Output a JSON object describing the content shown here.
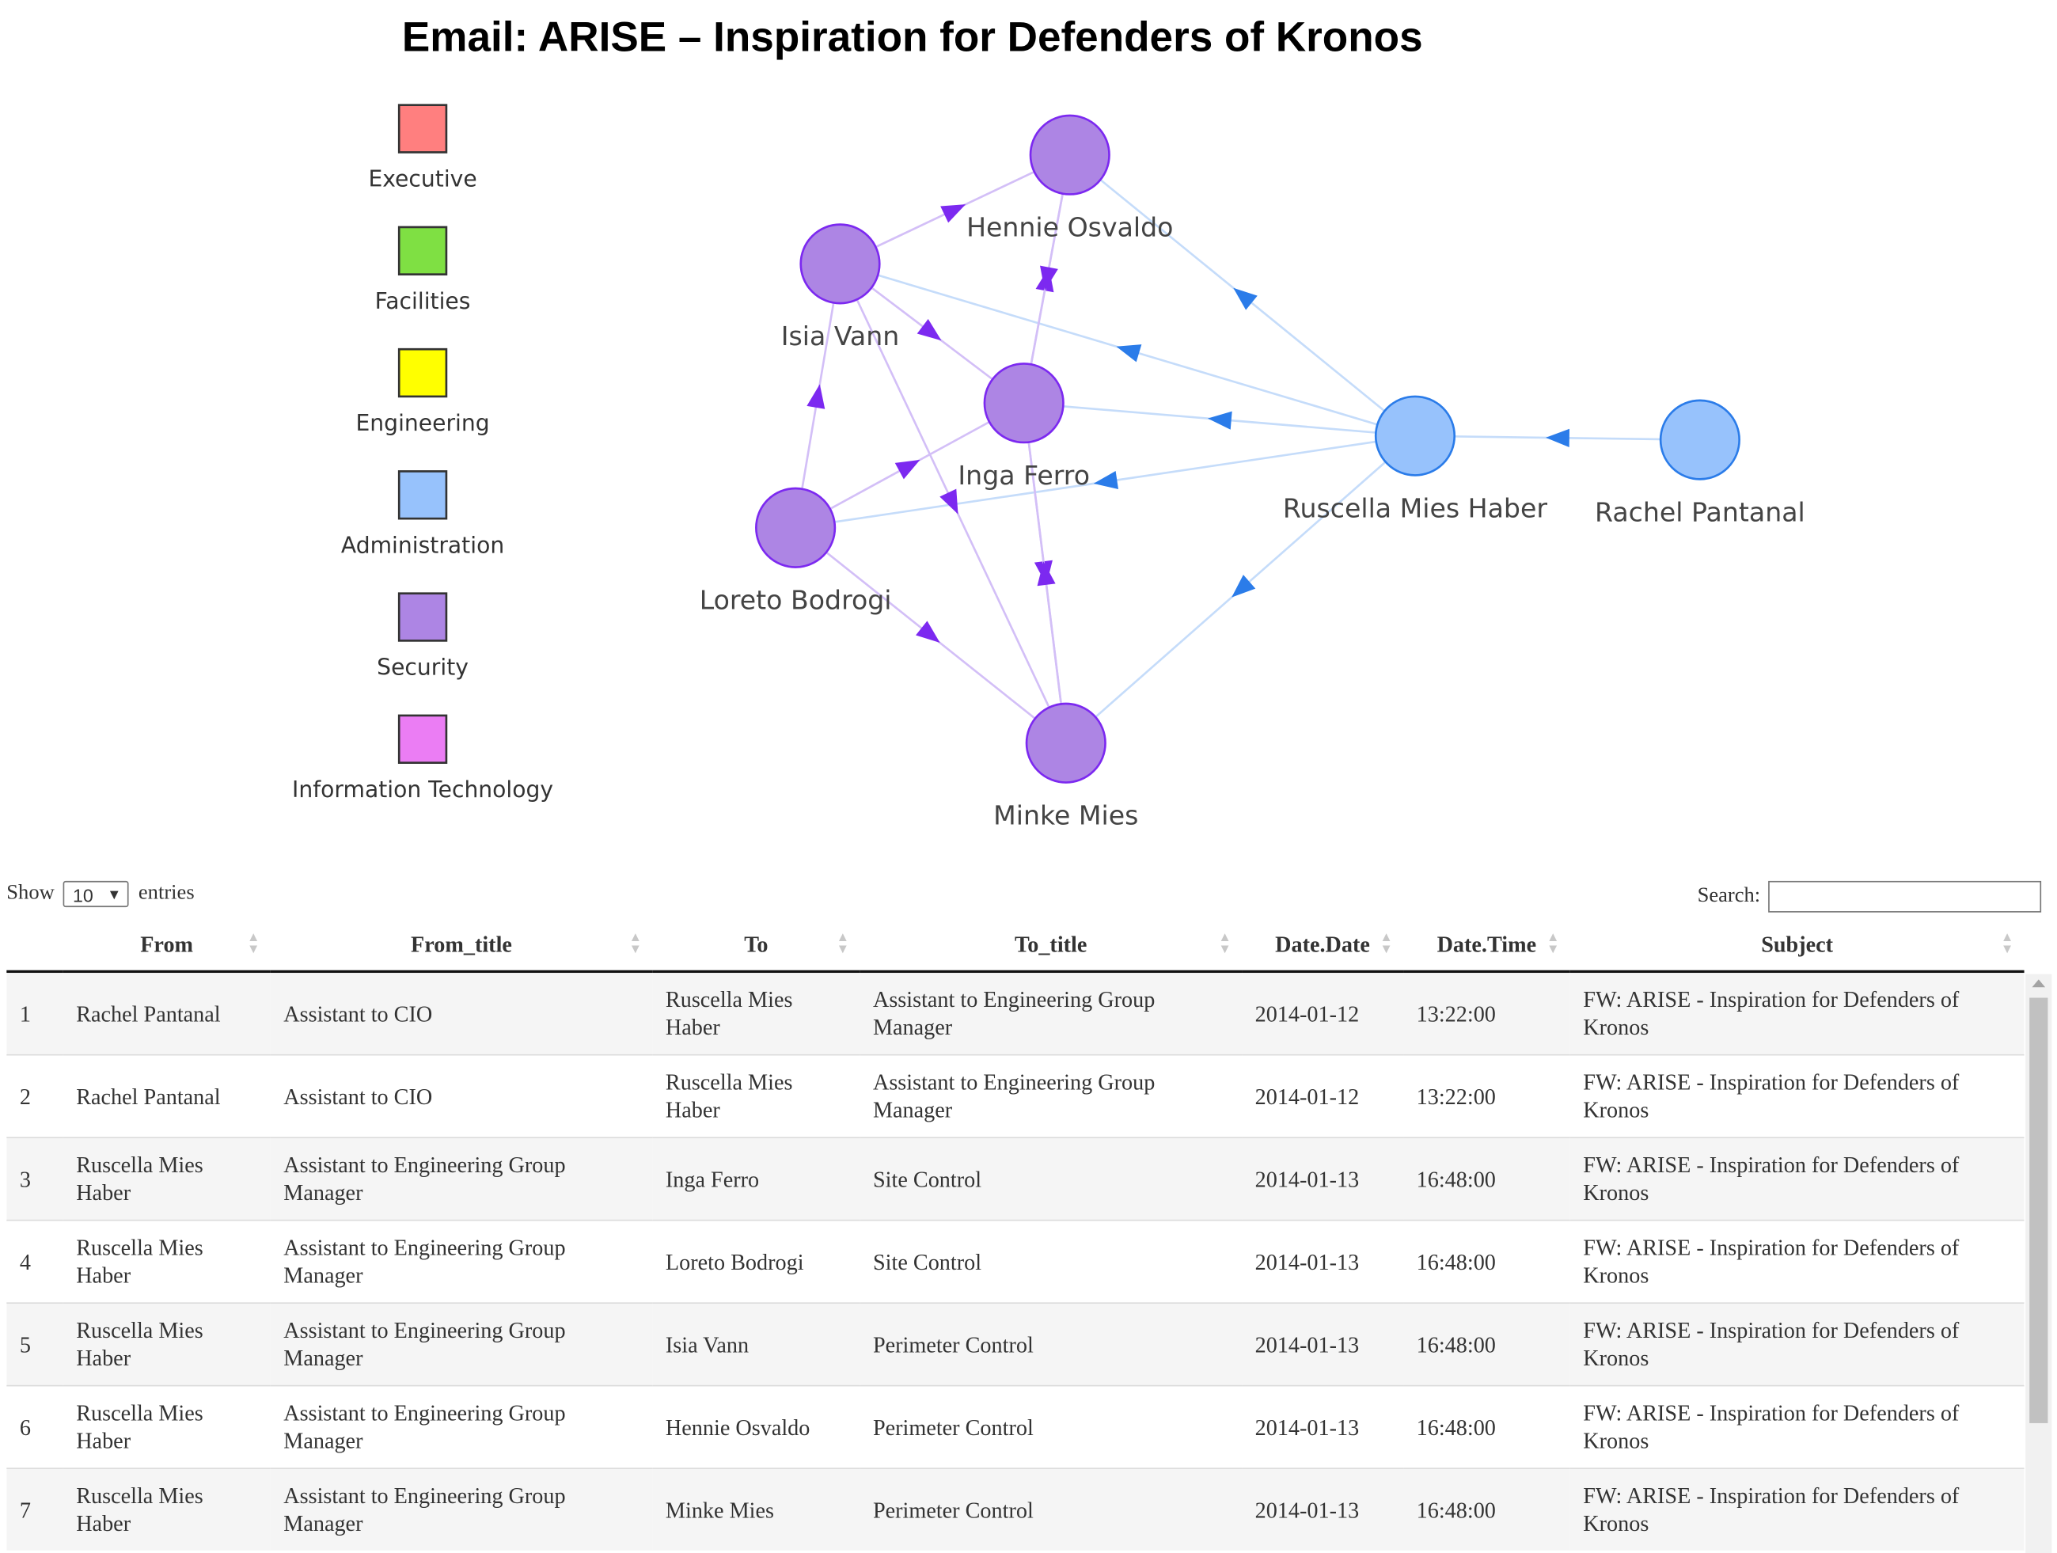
{
  "title": "Email: ARISE – Inspiration for Defenders of Kronos",
  "colors": {
    "executive": "#FF7F7F",
    "facilities": "#7FE043",
    "engineering": "#FFFF00",
    "administration": "#97C2FC",
    "security": "#AD85E4",
    "information_technology": "#EB7DF4",
    "edge_administration": "#2B7CE9",
    "edge_security": "#7C29F0"
  },
  "legend": [
    {
      "label": "Executive",
      "color": "#FF7F7F"
    },
    {
      "label": "Facilities",
      "color": "#7FE043"
    },
    {
      "label": "Engineering",
      "color": "#FFFF00"
    },
    {
      "label": "Administration",
      "color": "#97C2FC"
    },
    {
      "label": "Security",
      "color": "#AD85E4"
    },
    {
      "label": "Information Technology",
      "color": "#EB7DF4"
    }
  ],
  "network": {
    "nodes": [
      {
        "label": "Hennie Osvaldo",
        "group": "security"
      },
      {
        "label": "Isia Vann",
        "group": "security"
      },
      {
        "label": "Inga Ferro",
        "group": "security"
      },
      {
        "label": "Loreto Bodrogi",
        "group": "security"
      },
      {
        "label": "Minke Mies",
        "group": "security"
      },
      {
        "label": "Ruscella Mies Haber",
        "group": "administration"
      },
      {
        "label": "Rachel Pantanal",
        "group": "administration"
      }
    ],
    "edges": [
      {
        "from": "Rachel Pantanal",
        "to": "Ruscella Mies Haber"
      },
      {
        "from": "Ruscella Mies Haber",
        "to": "Hennie Osvaldo"
      },
      {
        "from": "Ruscella Mies Haber",
        "to": "Isia Vann"
      },
      {
        "from": "Ruscella Mies Haber",
        "to": "Inga Ferro"
      },
      {
        "from": "Ruscella Mies Haber",
        "to": "Loreto Bodrogi"
      },
      {
        "from": "Ruscella Mies Haber",
        "to": "Minke Mies"
      },
      {
        "from": "Isia Vann",
        "to": "Hennie Osvaldo"
      },
      {
        "from": "Isia Vann",
        "to": "Inga Ferro"
      },
      {
        "from": "Isia Vann",
        "to": "Minke Mies"
      },
      {
        "from": "Inga Ferro",
        "to": "Hennie Osvaldo"
      },
      {
        "from": "Inga Ferro",
        "to": "Minke Mies"
      },
      {
        "from": "Loreto Bodrogi",
        "to": "Isia Vann"
      },
      {
        "from": "Loreto Bodrogi",
        "to": "Inga Ferro"
      },
      {
        "from": "Loreto Bodrogi",
        "to": "Minke Mies"
      },
      {
        "from": "Hennie Osvaldo",
        "to": "Inga Ferro"
      },
      {
        "from": "Minke Mies",
        "to": "Inga Ferro"
      }
    ]
  },
  "controls": {
    "show_label": "Show",
    "entries_value": "10",
    "entries_label": "entries",
    "search_label": "Search:",
    "search_value": ""
  },
  "table": {
    "columns": [
      "",
      "From",
      "From_title",
      "To",
      "To_title",
      "Date.Date",
      "Date.Time",
      "Subject"
    ],
    "rows": [
      [
        "1",
        "Rachel Pantanal",
        "Assistant to CIO",
        "Ruscella Mies Haber",
        "Assistant to Engineering Group Manager",
        "2014-01-12",
        "13:22:00",
        "FW: ARISE - Inspiration for Defenders of Kronos"
      ],
      [
        "2",
        "Rachel Pantanal",
        "Assistant to CIO",
        "Ruscella Mies Haber",
        "Assistant to Engineering Group Manager",
        "2014-01-12",
        "13:22:00",
        "FW: ARISE - Inspiration for Defenders of Kronos"
      ],
      [
        "3",
        "Ruscella Mies Haber",
        "Assistant to Engineering Group Manager",
        "Inga Ferro",
        "Site Control",
        "2014-01-13",
        "16:48:00",
        "FW: ARISE - Inspiration for Defenders of Kronos"
      ],
      [
        "4",
        "Ruscella Mies Haber",
        "Assistant to Engineering Group Manager",
        "Loreto Bodrogi",
        "Site Control",
        "2014-01-13",
        "16:48:00",
        "FW: ARISE - Inspiration for Defenders of Kronos"
      ],
      [
        "5",
        "Ruscella Mies Haber",
        "Assistant to Engineering Group Manager",
        "Isia Vann",
        "Perimeter Control",
        "2014-01-13",
        "16:48:00",
        "FW: ARISE - Inspiration for Defenders of Kronos"
      ],
      [
        "6",
        "Ruscella Mies Haber",
        "Assistant to Engineering Group Manager",
        "Hennie Osvaldo",
        "Perimeter Control",
        "2014-01-13",
        "16:48:00",
        "FW: ARISE - Inspiration for Defenders of Kronos"
      ],
      [
        "7",
        "Ruscella Mies Haber",
        "Assistant to Engineering Group Manager",
        "Minke Mies",
        "Perimeter Control",
        "2014-01-13",
        "16:48:00",
        "FW: ARISE - Inspiration for Defenders of Kronos"
      ]
    ]
  }
}
